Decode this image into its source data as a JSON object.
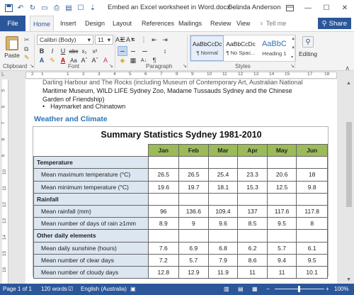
{
  "window": {
    "doc_title": "Embed an Excel worksheet in Word.docx  -...",
    "user": "Belinda Anderson",
    "controls": [
      "restore-ribbon",
      "minimize",
      "maximize",
      "close"
    ]
  },
  "tabs": {
    "file": "File",
    "items": [
      "Home",
      "Insert",
      "Design",
      "Layout",
      "References",
      "Mailings",
      "Review",
      "View"
    ],
    "active": "Home",
    "tell_me": "Tell me",
    "share": "Share"
  },
  "ribbon": {
    "clipboard": {
      "paste": "Paste",
      "label": "Clipboard"
    },
    "font": {
      "name": "Calibri (Body)",
      "size": "11",
      "label": "Font"
    },
    "paragraph": {
      "label": "Paragraph"
    },
    "styles": {
      "label": "Styles",
      "tiles": [
        {
          "preview": "AaBbCcDc",
          "name": "¶ Normal"
        },
        {
          "preview": "AaBbCcDc",
          "name": "¶ No Spac..."
        },
        {
          "preview": "AaBbC",
          "name": "Heading 1"
        }
      ]
    },
    "editing": {
      "label": "Editing"
    }
  },
  "ruler": {
    "numbers": [
      "1",
      "2",
      "1",
      "2",
      "3",
      "4",
      "5",
      "6",
      "7",
      "8",
      "9",
      "10",
      "11",
      "12",
      "13",
      "14",
      "15",
      "17",
      "18"
    ],
    "vnumbers": [
      "5",
      "6",
      "7",
      "8",
      "9",
      "10",
      "11",
      "12",
      "13",
      "14",
      "15",
      "16"
    ]
  },
  "document": {
    "prev_lines": [
      "Darling Harbour and The Rocks (including Museum of Contemporary Art, Australian National",
      "Maritime Museum, WILD LIFE Sydney Zoo, Madame Tussauds Sydney and the Chinese",
      "Garden of Friendship)"
    ],
    "bullet_item": "Haymarket and Chinatown",
    "section_heading": "Weather and Climate",
    "table": {
      "title": "Summary Statistics Sydney 1981-2010",
      "months": [
        "Jan",
        "Feb",
        "Mar",
        "Apr",
        "May",
        "Jun"
      ],
      "rows": [
        {
          "type": "category",
          "label": "Temperature"
        },
        {
          "type": "data",
          "label": "Mean maximum temperature (°C)",
          "values": [
            "26.5",
            "26.5",
            "25.4",
            "23.3",
            "20.6",
            "18"
          ]
        },
        {
          "type": "data",
          "label": "Mean minimum temperature (°C)",
          "values": [
            "19.6",
            "19.7",
            "18.1",
            "15.3",
            "12.5",
            "9.8"
          ]
        },
        {
          "type": "category",
          "label": "Rainfall"
        },
        {
          "type": "data",
          "label": "Mean rainfall (mm)",
          "values": [
            "96",
            "136.6",
            "109.4",
            "137",
            "117.6",
            "117.8"
          ]
        },
        {
          "type": "data",
          "label": "Mean number of days of rain ≥1mm",
          "values": [
            "8.9",
            "9",
            "9.6",
            "8.5",
            "9.5",
            "8"
          ]
        },
        {
          "type": "category",
          "label": "Other daily elements"
        },
        {
          "type": "data",
          "label": "Mean daily sunshine (hours)",
          "values": [
            "7.6",
            "6.9",
            "6.8",
            "6.2",
            "5.7",
            "6.1"
          ]
        },
        {
          "type": "data",
          "label": "Mean number of clear days",
          "values": [
            "7.2",
            "5.7",
            "7.9",
            "8.6",
            "9.4",
            "9.5"
          ]
        },
        {
          "type": "data",
          "label": "Mean number of cloudy days",
          "values": [
            "12.8",
            "12.9",
            "11.9",
            "11",
            "11",
            "10.1"
          ]
        }
      ]
    }
  },
  "status": {
    "page": "Page 1 of 1",
    "words": "120 words",
    "language": "English (Australia)",
    "zoom": "100%"
  }
}
